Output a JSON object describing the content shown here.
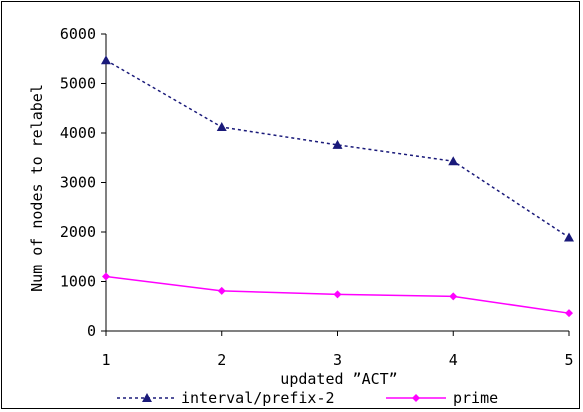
{
  "chart_data": {
    "type": "line",
    "title": "",
    "xlabel": "updated ”ACT”",
    "ylabel": "Num of nodes to relabel",
    "x": [
      1,
      2,
      3,
      4,
      5
    ],
    "xlim": [
      1,
      5
    ],
    "ylim": [
      0,
      6000
    ],
    "yticks": [
      0,
      1000,
      2000,
      3000,
      4000,
      5000,
      6000
    ],
    "grid": false,
    "legend_position": "bottom",
    "series": [
      {
        "name": "interval/prefix-2",
        "values": [
          5470,
          4120,
          3760,
          3430,
          1890
        ],
        "color": "#1a1a7a",
        "line_style": "dotted",
        "marker": "triangle"
      },
      {
        "name": "prime",
        "values": [
          1100,
          810,
          740,
          700,
          360
        ],
        "color": "#ff00ff",
        "line_style": "solid",
        "marker": "diamond"
      }
    ]
  }
}
